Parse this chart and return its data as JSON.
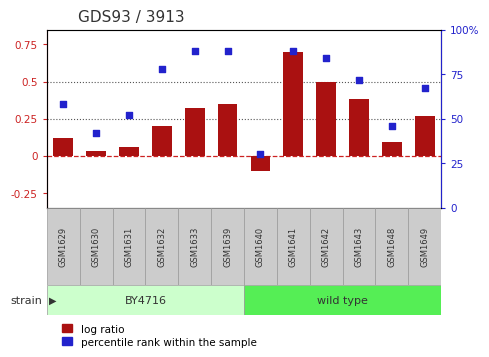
{
  "title": "GDS93 / 3913",
  "categories": [
    "GSM1629",
    "GSM1630",
    "GSM1631",
    "GSM1632",
    "GSM1633",
    "GSM1639",
    "GSM1640",
    "GSM1641",
    "GSM1642",
    "GSM1643",
    "GSM1648",
    "GSM1649"
  ],
  "log_ratio": [
    0.12,
    0.03,
    0.06,
    0.2,
    0.32,
    0.35,
    -0.1,
    0.7,
    0.5,
    0.38,
    0.09,
    0.27
  ],
  "percentile_rank": [
    0.58,
    0.42,
    0.52,
    0.78,
    0.88,
    0.88,
    0.3,
    0.88,
    0.84,
    0.72,
    0.46,
    0.67
  ],
  "bar_color": "#aa1111",
  "dot_color": "#2222cc",
  "strain_groups": [
    {
      "label": "BY4716",
      "start": 0,
      "end": 6,
      "color": "#ccffcc"
    },
    {
      "label": "wild type",
      "start": 6,
      "end": 12,
      "color": "#55ee55"
    }
  ],
  "ylim_left": [
    -0.35,
    0.85
  ],
  "ylim_right": [
    0.0,
    1.0
  ],
  "yticks_left": [
    -0.25,
    0.0,
    0.25,
    0.5,
    0.75
  ],
  "yticks_right": [
    0.0,
    0.25,
    0.5,
    0.75,
    1.0
  ],
  "ytick_labels_left": [
    "-0.25",
    "0",
    "0.25",
    "0.5",
    "0.75"
  ],
  "ytick_labels_right": [
    "0",
    "25",
    "50",
    "75",
    "100%"
  ],
  "hlines": [
    0.25,
    0.5
  ],
  "zero_line_color": "#cc2222",
  "dot_line_color": "#555555",
  "bg_color": "#ffffff",
  "plot_bg_color": "#ffffff",
  "tick_label_color_left": "#cc2222",
  "tick_label_color_right": "#2222cc",
  "title_color": "#333333",
  "label_box_color": "#cccccc",
  "label_box_edge": "#999999"
}
